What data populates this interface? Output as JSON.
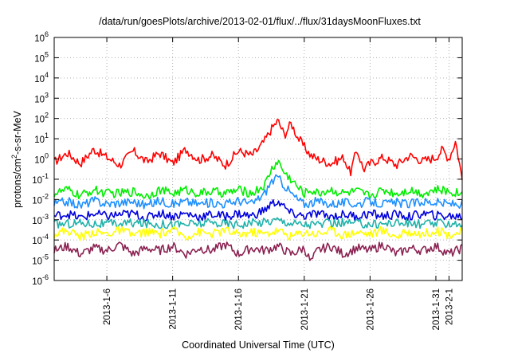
{
  "chart_data": {
    "type": "line",
    "title": "/data/run/goesPlots/archive/2013-02-01/flux/../flux/31daysMoonFluxes.txt",
    "xlabel": "Coordinated Universal Time (UTC)",
    "ylabel_base": "protons/cm",
    "ylabel_sup": "2",
    "ylabel_rest": "-s-sr-MeV",
    "xlim": [
      0,
      31
    ],
    "x_unit": "days since 2013-01-02 00:00 UTC",
    "ylim": [
      1e-06,
      1000000.0
    ],
    "yscale": "log",
    "grid": true,
    "x_ticks": [
      {
        "x": 4,
        "label": "2013-1-6"
      },
      {
        "x": 9,
        "label": "2013-1-11"
      },
      {
        "x": 14,
        "label": "2013-1-16"
      },
      {
        "x": 19,
        "label": "2013-1-21"
      },
      {
        "x": 24,
        "label": "2013-1-26"
      },
      {
        "x": 29,
        "label": "2013-1-31"
      },
      {
        "x": 30,
        "label": "2013-2-1"
      }
    ],
    "y_ticks": [
      {
        "exp": "-6"
      },
      {
        "exp": "-5"
      },
      {
        "exp": "-4"
      },
      {
        "exp": "-3"
      },
      {
        "exp": "-2"
      },
      {
        "exp": "-1"
      },
      {
        "exp": "0"
      },
      {
        "exp": "1"
      },
      {
        "exp": "2"
      },
      {
        "exp": "3"
      },
      {
        "exp": "4"
      },
      {
        "exp": "5"
      },
      {
        "exp": "6"
      }
    ],
    "series": [
      {
        "color": "#ff0000",
        "x": [
          0,
          1,
          2,
          3,
          4,
          5,
          6,
          7,
          8,
          9,
          10,
          11,
          12,
          13,
          14,
          15,
          15.5,
          16,
          16.5,
          17,
          17.5,
          18,
          18.5,
          19,
          19.5,
          20,
          21,
          22,
          22.5,
          23,
          23.5,
          24,
          25,
          26,
          27,
          28,
          29,
          29.5,
          30,
          30.5,
          31
        ],
        "y": [
          0.7,
          2,
          0.6,
          3,
          1.2,
          0.5,
          2.5,
          0.7,
          2,
          0.6,
          3,
          0.9,
          1.5,
          0.5,
          2.5,
          1.5,
          3,
          8,
          30,
          80,
          15,
          60,
          12,
          4,
          1.5,
          1,
          0.6,
          1.2,
          0.2,
          3,
          0.3,
          0.6,
          1.2,
          0.5,
          1.5,
          0.8,
          1.2,
          3,
          1,
          8,
          0.1
        ]
      },
      {
        "color": "#00ee00",
        "x": [
          0,
          1,
          2,
          3,
          4,
          5,
          6,
          7,
          8,
          9,
          10,
          11,
          12,
          13,
          14,
          15,
          16,
          16.5,
          17,
          17.5,
          18,
          18.5,
          19,
          19.5,
          20,
          21,
          22,
          23,
          24,
          25,
          26,
          27,
          28,
          29,
          30,
          31
        ],
        "y": [
          0.02,
          0.03,
          0.015,
          0.03,
          0.02,
          0.02,
          0.025,
          0.015,
          0.03,
          0.02,
          0.03,
          0.02,
          0.025,
          0.02,
          0.03,
          0.02,
          0.05,
          0.3,
          0.8,
          0.2,
          0.1,
          0.04,
          0.02,
          0.03,
          0.02,
          0.03,
          0.02,
          0.025,
          0.015,
          0.03,
          0.02,
          0.03,
          0.02,
          0.03,
          0.025,
          0.02
        ]
      },
      {
        "color": "#1e90ff",
        "x": [
          0,
          1,
          2,
          3,
          4,
          5,
          6,
          7,
          8,
          9,
          10,
          11,
          12,
          13,
          14,
          15,
          16,
          16.5,
          17,
          17.5,
          18,
          18.5,
          19,
          20,
          21,
          22,
          23,
          24,
          25,
          26,
          27,
          28,
          29,
          30,
          31
        ],
        "y": [
          0.006,
          0.008,
          0.005,
          0.009,
          0.006,
          0.007,
          0.008,
          0.005,
          0.009,
          0.006,
          0.008,
          0.006,
          0.007,
          0.006,
          0.009,
          0.006,
          0.02,
          0.08,
          0.12,
          0.05,
          0.02,
          0.01,
          0.006,
          0.008,
          0.006,
          0.007,
          0.006,
          0.008,
          0.006,
          0.007,
          0.006,
          0.008,
          0.007,
          0.006,
          0.006
        ]
      },
      {
        "color": "#0000dd",
        "x": [
          0,
          1,
          2,
          3,
          4,
          5,
          6,
          7,
          8,
          9,
          10,
          11,
          12,
          13,
          14,
          15,
          16,
          16.5,
          17,
          17.5,
          18,
          19,
          20,
          21,
          22,
          23,
          24,
          25,
          26,
          27,
          28,
          29,
          30,
          31
        ],
        "y": [
          0.0015,
          0.002,
          0.0012,
          0.002,
          0.0015,
          0.0018,
          0.002,
          0.0012,
          0.0022,
          0.0015,
          0.002,
          0.0014,
          0.0018,
          0.0015,
          0.002,
          0.0015,
          0.003,
          0.006,
          0.008,
          0.004,
          0.002,
          0.0015,
          0.002,
          0.0014,
          0.0018,
          0.0015,
          0.002,
          0.0015,
          0.0018,
          0.0014,
          0.002,
          0.0016,
          0.0015,
          0.0015
        ]
      },
      {
        "color": "#20b2aa",
        "x": [
          0,
          2,
          4,
          6,
          8,
          10,
          12,
          14,
          16,
          17,
          18,
          19,
          20,
          22,
          24,
          26,
          28,
          30,
          31
        ],
        "y": [
          0.0006,
          0.0007,
          0.0006,
          0.0007,
          0.0006,
          0.0006,
          0.0007,
          0.0006,
          0.0008,
          0.001,
          0.0007,
          0.0006,
          0.0006,
          0.0007,
          0.0006,
          0.0007,
          0.0006,
          0.0007,
          0.0006
        ]
      },
      {
        "color": "#ffff00",
        "x": [
          0,
          1,
          2,
          3,
          4,
          5,
          6,
          7,
          8,
          9,
          10,
          11,
          12,
          13,
          14,
          15,
          16,
          17,
          18,
          19,
          20,
          21,
          22,
          23,
          24,
          25,
          26,
          27,
          28,
          29,
          30,
          31
        ],
        "y": [
          0.0002,
          0.0003,
          0.00015,
          0.00025,
          0.0002,
          0.0003,
          0.00018,
          0.00025,
          0.0002,
          0.0003,
          0.00015,
          0.00025,
          0.0002,
          0.0003,
          0.00018,
          0.00025,
          0.0002,
          0.0003,
          0.00015,
          0.00025,
          0.0002,
          0.0003,
          0.00018,
          0.00025,
          0.0002,
          0.0003,
          0.00015,
          0.00025,
          0.0002,
          0.0003,
          0.00018,
          0.00025
        ]
      },
      {
        "color": "#8b2252",
        "x": [
          0,
          1,
          2,
          3,
          4,
          5,
          6,
          7,
          8,
          9,
          10,
          11,
          12,
          13,
          14,
          15,
          16,
          17,
          18,
          19,
          19.5,
          20,
          21,
          22,
          23,
          24,
          25,
          26,
          27,
          28,
          29,
          30,
          31
        ],
        "y": [
          3e-05,
          5e-05,
          2e-05,
          4e-05,
          3e-05,
          6e-05,
          2e-05,
          4e-05,
          3e-05,
          5e-05,
          2e-05,
          4e-05,
          3e-05,
          6e-05,
          2e-05,
          4e-05,
          3e-05,
          5e-05,
          2e-05,
          4e-05,
          8e-06,
          3e-05,
          5e-05,
          2e-05,
          4e-05,
          3e-05,
          6e-05,
          2e-05,
          4e-05,
          3e-05,
          5e-05,
          2e-05,
          4e-05
        ]
      }
    ]
  }
}
